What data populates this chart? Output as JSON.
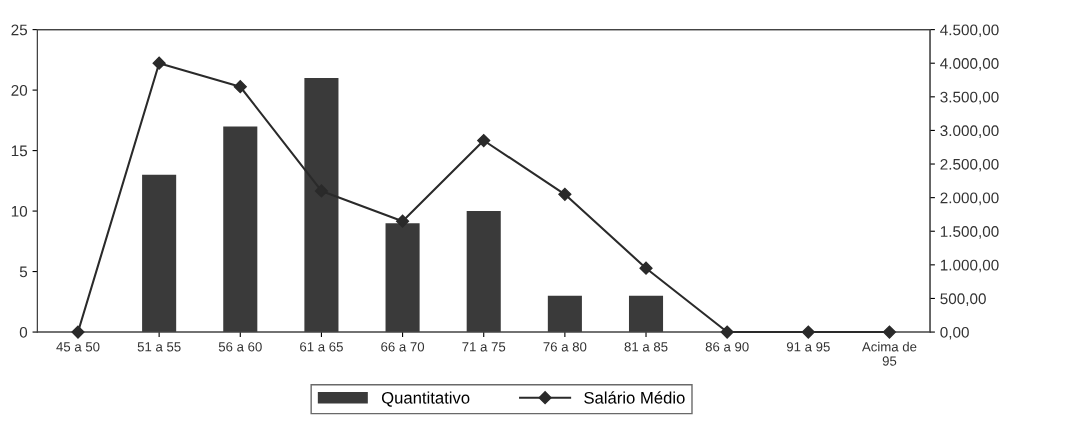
{
  "chart_data": {
    "type": "bar",
    "categories": [
      "45 a 50",
      "51 a 55",
      "56 a 60",
      "61 a 65",
      "66 a 70",
      "71 a 75",
      "76 a 80",
      "81 a 85",
      "86 a 90",
      "91 a 95",
      "Acima de\n95"
    ],
    "series": [
      {
        "name": "Quantitativo",
        "color": "#3a3a3a",
        "values": [
          0,
          13,
          17,
          21,
          9,
          10,
          3,
          3,
          0,
          0,
          0
        ]
      },
      {
        "name": "Salário Médio",
        "type": "line",
        "axis": "y2",
        "color": "#2a2a2a",
        "marker": "diamond",
        "values": [
          0,
          4000,
          3650,
          2100,
          1650,
          2850,
          2050,
          950,
          0,
          0,
          0
        ]
      }
    ],
    "ylim": [
      0,
      25
    ],
    "yticks": [
      0,
      5,
      10,
      15,
      20,
      25
    ],
    "y2lim": [
      0,
      4500
    ],
    "y2ticks": [
      {
        "value": 0,
        "label": "0,00"
      },
      {
        "value": 500,
        "label": "500,00"
      },
      {
        "value": 1000,
        "label": "1.000,00"
      },
      {
        "value": 1500,
        "label": "1.500,00"
      },
      {
        "value": 2000,
        "label": "2.000,00"
      },
      {
        "value": 2500,
        "label": "2.500,00"
      },
      {
        "value": 3000,
        "label": "3.000,00"
      },
      {
        "value": 3500,
        "label": "3.500,00"
      },
      {
        "value": 4000,
        "label": "4.000,00"
      },
      {
        "value": 4500,
        "label": "4.500,00"
      }
    ],
    "legend": "bottom",
    "grid": false
  }
}
